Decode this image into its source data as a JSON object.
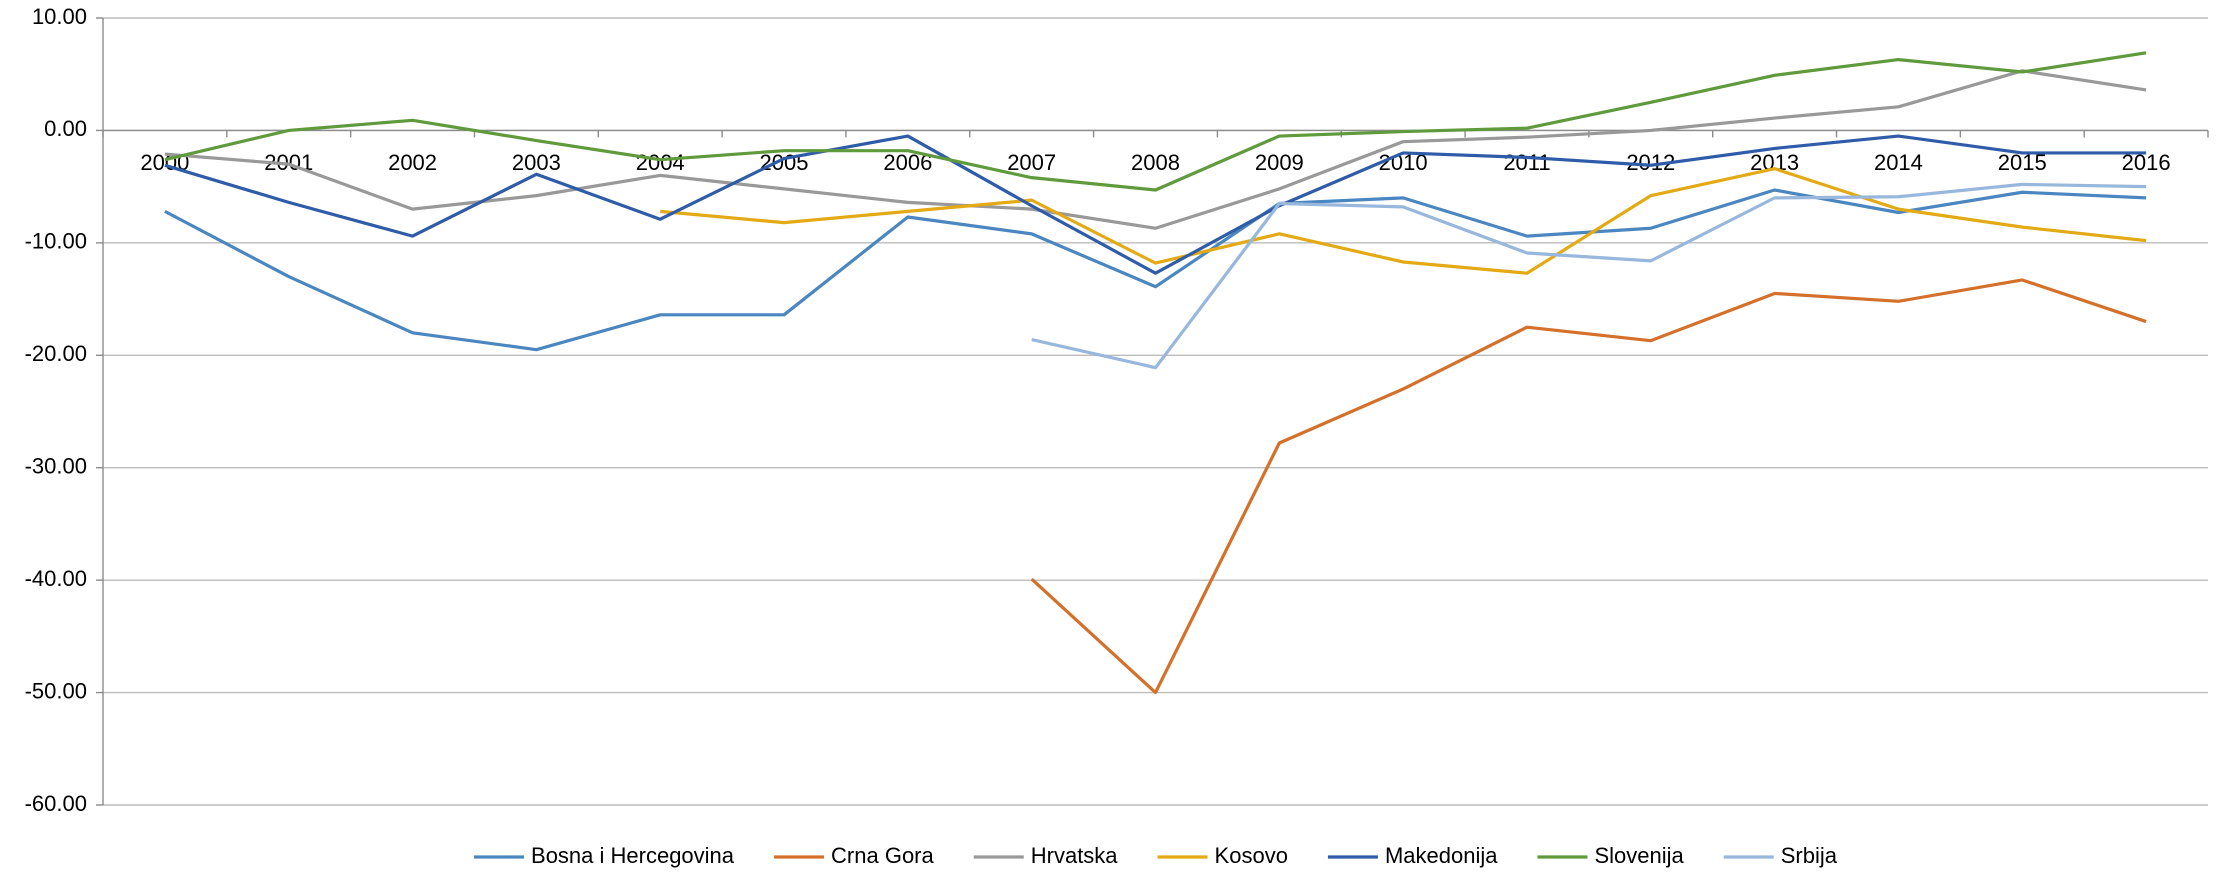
{
  "chart_data": {
    "type": "line",
    "categories": [
      "2000",
      "2001",
      "2002",
      "2003",
      "2004",
      "2005",
      "2006",
      "2007",
      "2008",
      "2009",
      "2010",
      "2011",
      "2012",
      "2013",
      "2014",
      "2015",
      "2016"
    ],
    "series": [
      {
        "name": "Bosna i Hercegovina",
        "color": "#4a86c0",
        "values": [
          -7.2,
          -13.0,
          -18.0,
          -19.5,
          -16.4,
          -16.4,
          -7.7,
          -9.2,
          -13.9,
          -6.5,
          -6.0,
          -9.4,
          -8.7,
          -5.3,
          -7.3,
          -5.5,
          -6.0
        ]
      },
      {
        "name": "Crna Gora",
        "color": "#d4702a",
        "values": [
          null,
          null,
          null,
          null,
          null,
          null,
          null,
          -39.9,
          -50.0,
          -27.8,
          -23.0,
          -17.5,
          -18.7,
          -14.5,
          -15.2,
          -13.3,
          -17.0
        ]
      },
      {
        "name": "Hrvatska",
        "color": "#999999",
        "values": [
          -2.1,
          -3.0,
          -7.0,
          -5.8,
          -4.0,
          -5.2,
          -6.4,
          -7.0,
          -8.7,
          -5.2,
          -1.0,
          -0.6,
          0.0,
          1.1,
          2.1,
          5.3,
          3.6
        ]
      },
      {
        "name": "Kosovo",
        "color": "#e3aa16",
        "values": [
          null,
          null,
          null,
          null,
          -7.2,
          -8.2,
          -7.2,
          -6.2,
          -11.8,
          -9.2,
          -11.7,
          -12.7,
          -5.8,
          -3.4,
          -7.0,
          -8.6,
          -9.8
        ]
      },
      {
        "name": "Makedonija",
        "color": "#2f5ca8",
        "values": [
          -3.1,
          -6.4,
          -9.4,
          -3.9,
          -7.9,
          -2.5,
          -0.5,
          -6.7,
          -12.7,
          -6.7,
          -2.0,
          -2.4,
          -3.1,
          -1.6,
          -0.5,
          -2.0,
          -2.0
        ]
      },
      {
        "name": "Slovenija",
        "color": "#5f9a3c",
        "values": [
          -2.6,
          0.0,
          0.9,
          -0.9,
          -2.6,
          -1.8,
          -1.8,
          -4.2,
          -5.3,
          -0.5,
          -0.1,
          0.2,
          2.5,
          4.9,
          6.3,
          5.2,
          6.9
        ]
      },
      {
        "name": "Srbija",
        "color": "#98b7dc",
        "values": [
          null,
          null,
          null,
          null,
          null,
          null,
          null,
          -18.6,
          -21.1,
          -6.5,
          -6.8,
          -10.9,
          -11.6,
          -6.0,
          -5.9,
          -4.8,
          -5.0
        ]
      }
    ],
    "ylim": [
      -60,
      10
    ],
    "yticks": [
      {
        "value": -60,
        "label": "-60.00"
      },
      {
        "value": -50,
        "label": "-50.00"
      },
      {
        "value": -40,
        "label": "-40.00"
      },
      {
        "value": -30,
        "label": "-30.00"
      },
      {
        "value": -20,
        "label": "-20.00"
      },
      {
        "value": -10,
        "label": "-10.00"
      },
      {
        "value": 0,
        "label": "0.00"
      },
      {
        "value": 10,
        "label": "10.00"
      }
    ],
    "grid": true,
    "legend": "bottom"
  }
}
